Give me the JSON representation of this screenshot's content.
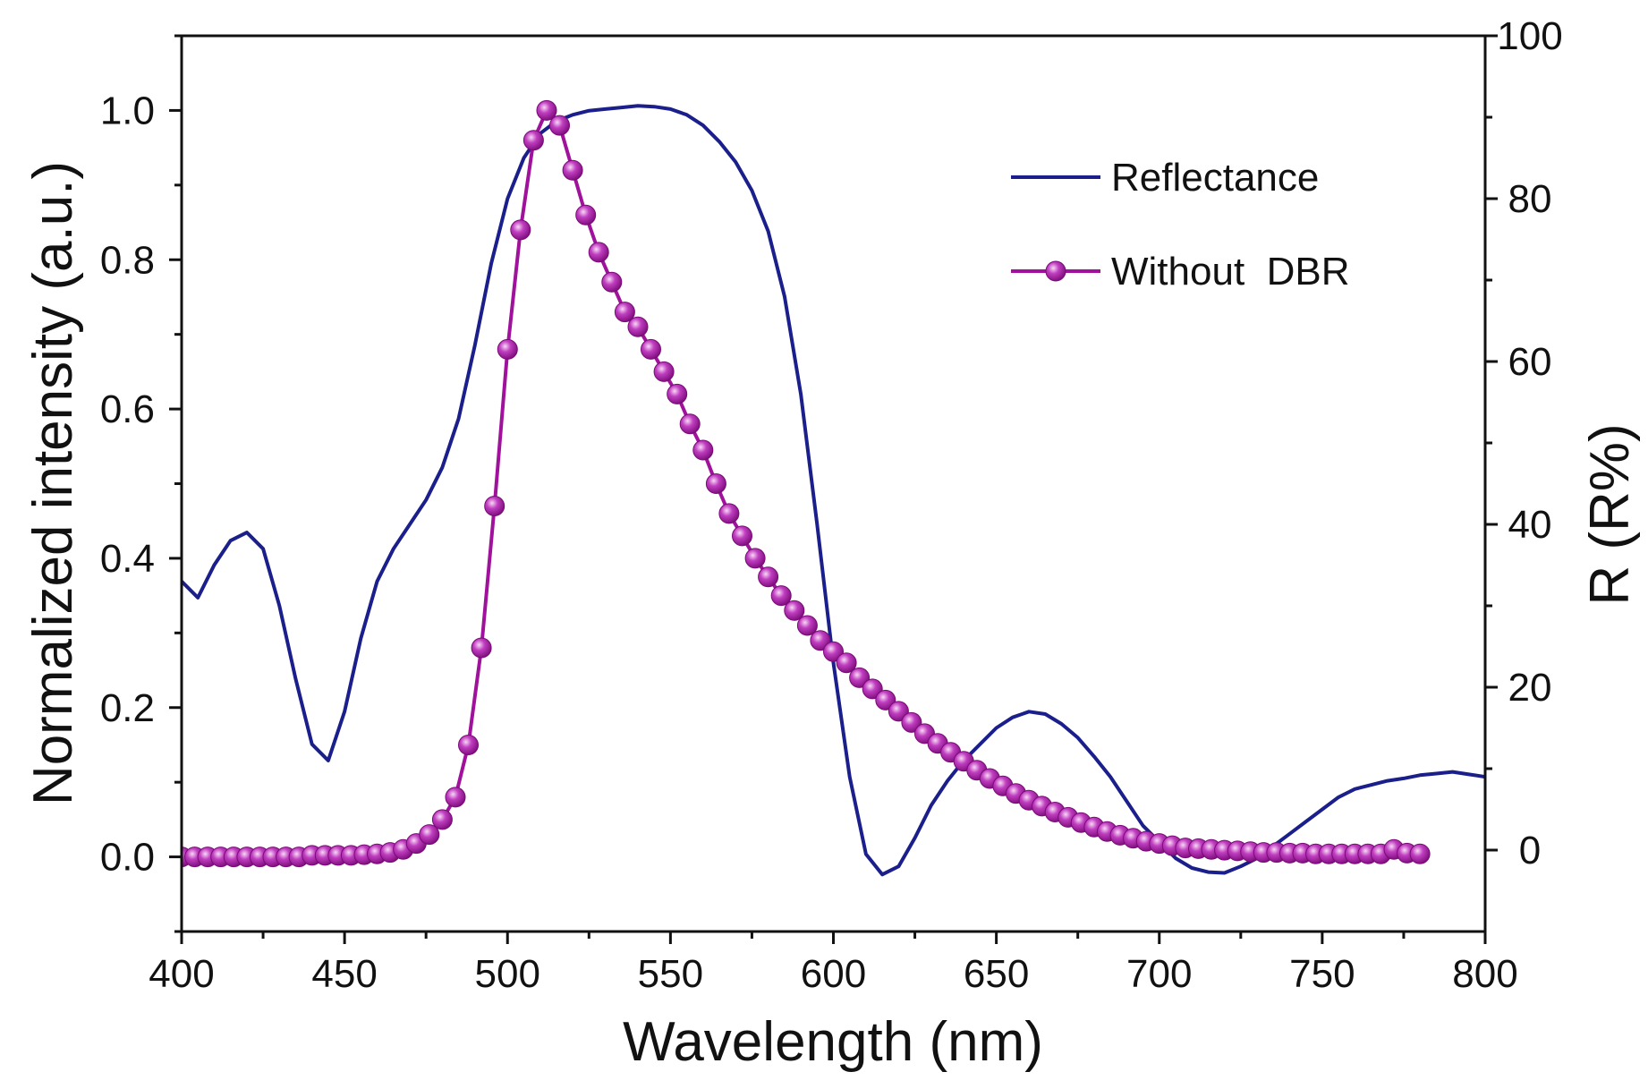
{
  "chart_data": {
    "type": "line",
    "title": "",
    "xlabel": "Wavelength (nm)",
    "ylabel_left": "Normalized intensity (a.u.)",
    "ylabel_right": "R (R%)",
    "xlim": [
      400,
      800
    ],
    "ylim_left": [
      -0.1,
      1.1
    ],
    "ylim_right": [
      -10,
      100
    ],
    "x_ticks": [
      400,
      450,
      500,
      550,
      600,
      650,
      700,
      750,
      800
    ],
    "x_tick_labels": [
      "400",
      "450",
      "500",
      "550",
      "600",
      "650",
      "700",
      "750",
      "800"
    ],
    "y_left_ticks": [
      0.0,
      0.2,
      0.4,
      0.6,
      0.8,
      1.0
    ],
    "y_left_tick_labels": [
      "0.0",
      "0.2",
      "0.4",
      "0.6",
      "0.8",
      "1.0"
    ],
    "y_right_ticks": [
      0,
      20,
      40,
      60,
      80,
      100
    ],
    "y_right_tick_labels": [
      "0",
      "20",
      "40",
      "60",
      "80",
      "100"
    ],
    "grid": false,
    "legend_position": "top-right",
    "series": [
      {
        "name": "Reflectance",
        "axis": "right",
        "style": "line",
        "color": "#1b1f8c",
        "x": [
          400,
          405,
          410,
          415,
          420,
          425,
          430,
          435,
          440,
          445,
          450,
          455,
          460,
          465,
          470,
          475,
          480,
          485,
          490,
          495,
          500,
          505,
          510,
          515,
          520,
          525,
          530,
          535,
          540,
          545,
          550,
          555,
          560,
          565,
          570,
          575,
          580,
          585,
          590,
          595,
          600,
          605,
          610,
          615,
          620,
          625,
          630,
          635,
          640,
          645,
          650,
          655,
          660,
          665,
          670,
          675,
          680,
          685,
          690,
          695,
          700,
          705,
          710,
          715,
          720,
          725,
          730,
          735,
          740,
          745,
          750,
          755,
          760,
          765,
          770,
          775,
          780,
          785,
          790,
          795,
          800
        ],
        "y": [
          33,
          31,
          35,
          38,
          39,
          37,
          30,
          21,
          13,
          11,
          17,
          26,
          33,
          37,
          40,
          43,
          47,
          53,
          62,
          72,
          80,
          85,
          88,
          89.5,
          90.3,
          90.8,
          91,
          91.2,
          91.4,
          91.3,
          91,
          90.3,
          89,
          87,
          84.5,
          81,
          76,
          68,
          56,
          40,
          23,
          9,
          -0.5,
          -3,
          -2,
          1.5,
          5.5,
          8.5,
          11,
          13,
          15,
          16.3,
          17,
          16.7,
          15.5,
          13.8,
          11.5,
          9,
          6,
          3,
          1,
          -1,
          -2.2,
          -2.7,
          -2.8,
          -2,
          -1,
          0.5,
          2,
          3.5,
          5,
          6.5,
          7.5,
          8,
          8.5,
          8.8,
          9.2,
          9.4,
          9.6,
          9.3,
          9
        ]
      },
      {
        "name": "Without  DBR",
        "axis": "left",
        "style": "line-markers",
        "color": "#a0129c",
        "x": [
          400,
          404,
          408,
          412,
          416,
          420,
          424,
          428,
          432,
          436,
          440,
          444,
          448,
          452,
          456,
          460,
          464,
          468,
          472,
          476,
          480,
          484,
          488,
          492,
          496,
          500,
          504,
          508,
          512,
          516,
          520,
          524,
          528,
          532,
          536,
          540,
          544,
          548,
          552,
          556,
          560,
          564,
          568,
          572,
          576,
          580,
          584,
          588,
          592,
          596,
          600,
          604,
          608,
          612,
          616,
          620,
          624,
          628,
          632,
          636,
          640,
          644,
          648,
          652,
          656,
          660,
          664,
          668,
          672,
          676,
          680,
          684,
          688,
          692,
          696,
          700,
          704,
          708,
          712,
          716,
          720,
          724,
          728,
          732,
          736,
          740,
          744,
          748,
          752,
          756,
          760,
          764,
          768,
          772,
          776,
          780
        ],
        "y": [
          0.0,
          0.0,
          0.0,
          0.0,
          0.0,
          0.0,
          0.0,
          0.0,
          0.0,
          0.0,
          0.002,
          0.002,
          0.002,
          0.002,
          0.003,
          0.004,
          0.006,
          0.01,
          0.018,
          0.03,
          0.05,
          0.08,
          0.15,
          0.28,
          0.47,
          0.68,
          0.84,
          0.96,
          1.0,
          0.98,
          0.92,
          0.86,
          0.81,
          0.77,
          0.73,
          0.71,
          0.68,
          0.65,
          0.62,
          0.58,
          0.545,
          0.5,
          0.46,
          0.43,
          0.4,
          0.375,
          0.35,
          0.33,
          0.31,
          0.29,
          0.275,
          0.26,
          0.24,
          0.225,
          0.21,
          0.195,
          0.18,
          0.165,
          0.152,
          0.14,
          0.128,
          0.116,
          0.105,
          0.095,
          0.085,
          0.076,
          0.068,
          0.06,
          0.053,
          0.046,
          0.04,
          0.034,
          0.029,
          0.025,
          0.021,
          0.018,
          0.015,
          0.012,
          0.011,
          0.01,
          0.009,
          0.008,
          0.007,
          0.006,
          0.006,
          0.005,
          0.005,
          0.004,
          0.004,
          0.004,
          0.004,
          0.004,
          0.004,
          0.01,
          0.005,
          0.004
        ]
      }
    ]
  }
}
